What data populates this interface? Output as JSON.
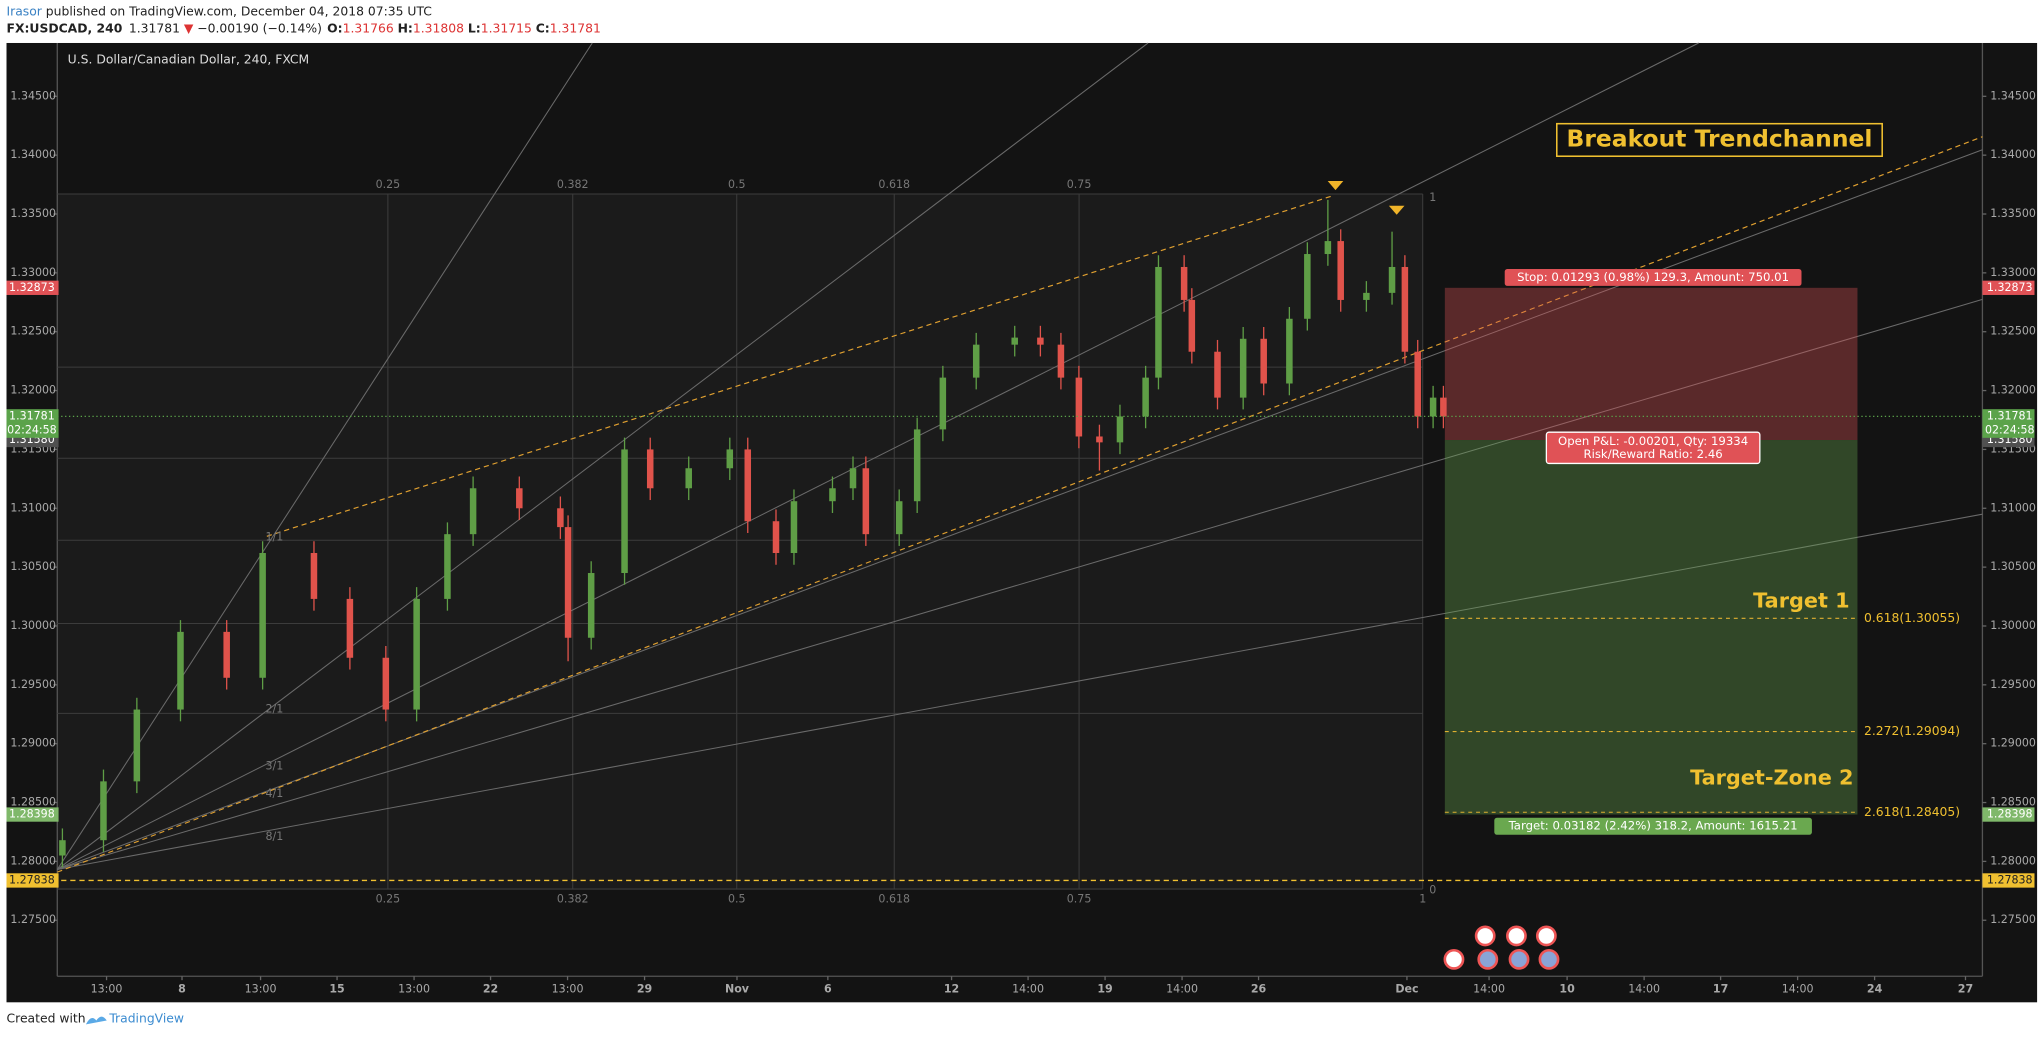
{
  "header": {
    "author": "Irasor",
    "published": "published on TradingView.com, December 04, 2018 07:35 UTC",
    "symbol": "FX:USDCAD, 240",
    "last": "1.31781",
    "arrow": "▼",
    "change": "−0.00190 (−0.14%)",
    "o_label": "O:",
    "o": "1.31766",
    "h_label": "H:",
    "h": "1.31808",
    "l_label": "L:",
    "l": "1.31715",
    "c_label": "C:",
    "c": "1.31781"
  },
  "footer": {
    "created": "Created with",
    "brand": "TradingView"
  },
  "chart_data": {
    "type": "candlestick",
    "title": "U.S. Dollar/Canadian Dollar, 240, FXCM",
    "up_color": "#5f9e46",
    "down_color": "#e0534b",
    "xlim": [
      0,
      375
    ],
    "ylim": [
      1.27024,
      1.34953
    ],
    "xticks": [
      {
        "value": 9.6,
        "label": "13:00"
      },
      {
        "value": 24.3,
        "label": "8"
      },
      {
        "value": 39.6,
        "label": "13:00"
      },
      {
        "value": 54.5,
        "label": "15"
      },
      {
        "value": 69.5,
        "label": "13:00"
      },
      {
        "value": 84.4,
        "label": "22"
      },
      {
        "value": 99.4,
        "label": "13:00"
      },
      {
        "value": 114.4,
        "label": "29"
      },
      {
        "value": 132.4,
        "label": "Nov"
      },
      {
        "value": 150.1,
        "label": "6"
      },
      {
        "value": 174.2,
        "label": "12"
      },
      {
        "value": 189.1,
        "label": "14:00"
      },
      {
        "value": 204.1,
        "label": "19"
      },
      {
        "value": 219.1,
        "label": "14:00"
      },
      {
        "value": 234.0,
        "label": "26"
      },
      {
        "value": 262.9,
        "label": "Dec"
      },
      {
        "value": 278.9,
        "label": "14:00"
      },
      {
        "value": 294.1,
        "label": "10"
      },
      {
        "value": 309.1,
        "label": "14:00"
      },
      {
        "value": 324.0,
        "label": "17"
      },
      {
        "value": 339.0,
        "label": "14:00"
      },
      {
        "value": 354.0,
        "label": "24"
      },
      {
        "value": 371.7,
        "label": "27"
      }
    ],
    "yticks": [
      {
        "value": 1.345,
        "label": "1.34500"
      },
      {
        "value": 1.34,
        "label": "1.34000"
      },
      {
        "value": 1.335,
        "label": "1.33500"
      },
      {
        "value": 1.33,
        "label": "1.33000"
      },
      {
        "value": 1.325,
        "label": "1.32500"
      },
      {
        "value": 1.32,
        "label": "1.32000"
      },
      {
        "value": 1.315,
        "label": "1.31500"
      },
      {
        "value": 1.31,
        "label": "1.31000"
      },
      {
        "value": 1.305,
        "label": "1.30500"
      },
      {
        "value": 1.3,
        "label": "1.30000"
      },
      {
        "value": 1.295,
        "label": "1.29500"
      },
      {
        "value": 1.29,
        "label": "1.29000"
      },
      {
        "value": 1.285,
        "label": "1.28500"
      },
      {
        "value": 1.28,
        "label": "1.28000"
      },
      {
        "value": 1.275,
        "label": "1.27500"
      }
    ],
    "price_labels": [
      {
        "value": 1.32873,
        "label": "1.32873",
        "color": "#e05256"
      },
      {
        "value": 1.31781,
        "label": "1.31781",
        "color": "#5ba34a"
      },
      {
        "value": 1.3158,
        "label": "1.31580",
        "color": "#505050"
      },
      {
        "value": 1.28398,
        "label": "1.28398",
        "color": "#7fb86a"
      },
      {
        "value": 1.27838,
        "label": "1.27838",
        "color": "#f0c030"
      }
    ],
    "countdown": "02:24:58",
    "x": [
      1,
      9,
      15.5,
      24,
      33,
      40,
      50,
      57,
      64,
      70,
      76,
      81,
      90,
      98,
      99.5,
      104,
      110.5,
      115.5,
      123,
      131,
      134.5,
      140,
      143.5,
      151,
      155,
      157.5,
      164,
      167.5,
      172.5,
      179,
      186.5,
      191.5,
      195.5,
      199,
      203,
      207,
      212,
      214.5,
      219.5,
      221,
      226,
      231,
      235,
      240,
      243.5,
      247.5,
      250,
      255,
      260,
      262.5,
      265,
      268,
      270
    ],
    "open": [
      1.2805,
      1.2818,
      1.2868,
      1.2929,
      1.2995,
      1.2956,
      1.3062,
      1.3023,
      1.2973,
      1.2929,
      1.3023,
      1.3078,
      1.3117,
      1.31,
      1.3084,
      1.299,
      1.3045,
      1.315,
      1.3117,
      1.3134,
      1.315,
      1.3089,
      1.3062,
      1.3106,
      1.3117,
      1.3134,
      1.3078,
      1.3106,
      1.3167,
      1.3211,
      1.3239,
      1.3245,
      1.3239,
      1.3211,
      1.3161,
      1.3156,
      1.3178,
      1.3211,
      1.3305,
      1.3277,
      1.3233,
      1.3194,
      1.3244,
      1.3206,
      1.3261,
      1.3316,
      1.3327,
      1.3277,
      1.3283,
      1.3305,
      1.3233,
      1.3178,
      1.3194
    ],
    "high": [
      1.2828,
      1.2878,
      1.2939,
      1.3005,
      1.3005,
      1.3072,
      1.3072,
      1.3033,
      1.2983,
      1.3033,
      1.3088,
      1.3127,
      1.3127,
      1.311,
      1.3094,
      1.3055,
      1.316,
      1.316,
      1.3144,
      1.316,
      1.316,
      1.3099,
      1.3116,
      1.3127,
      1.3144,
      1.3144,
      1.3116,
      1.3177,
      1.3221,
      1.3249,
      1.3255,
      1.3255,
      1.3249,
      1.3221,
      1.3171,
      1.3188,
      1.3221,
      1.3315,
      1.3315,
      1.3287,
      1.3243,
      1.3254,
      1.3254,
      1.3271,
      1.3326,
      1.3362,
      1.3337,
      1.3293,
      1.3335,
      1.3315,
      1.3243,
      1.3204,
      1.3204
    ],
    "low": [
      1.2795,
      1.2808,
      1.2858,
      1.2919,
      1.2946,
      1.2946,
      1.3013,
      1.2963,
      1.2919,
      1.2919,
      1.3013,
      1.3068,
      1.309,
      1.3074,
      1.297,
      1.298,
      1.3035,
      1.3107,
      1.3107,
      1.3124,
      1.3079,
      1.3052,
      1.3052,
      1.3096,
      1.3107,
      1.3068,
      1.3068,
      1.3096,
      1.3157,
      1.3201,
      1.3229,
      1.3229,
      1.3201,
      1.3151,
      1.3132,
      1.3146,
      1.3168,
      1.3201,
      1.3267,
      1.3223,
      1.3184,
      1.3184,
      1.3196,
      1.3196,
      1.3251,
      1.3306,
      1.3267,
      1.3267,
      1.3273,
      1.3223,
      1.3168,
      1.3168,
      1.3168
    ],
    "close": [
      1.2818,
      1.2868,
      1.2929,
      1.2995,
      1.2956,
      1.3062,
      1.3023,
      1.2973,
      1.2929,
      1.3023,
      1.3078,
      1.3117,
      1.31,
      1.3084,
      1.299,
      1.3045,
      1.315,
      1.3117,
      1.3134,
      1.315,
      1.3089,
      1.3062,
      1.3106,
      1.3117,
      1.3134,
      1.3078,
      1.3106,
      1.3167,
      1.3211,
      1.3239,
      1.3245,
      1.3239,
      1.3211,
      1.3161,
      1.3156,
      1.3178,
      1.3211,
      1.3305,
      1.3277,
      1.3233,
      1.3194,
      1.3244,
      1.3206,
      1.3261,
      1.3316,
      1.3327,
      1.3277,
      1.3283,
      1.3305,
      1.3233,
      1.3178,
      1.3194,
      1.3178
    ],
    "annotations": {
      "headline": "Breakout Trendchannel",
      "target1": "Target 1",
      "target2": "Target-Zone 2",
      "stop": "Stop: 0.01293 (0.98%) 129.3, Amount: 750.01",
      "pnl": "Open P&L: -0.00201, Qty: 19334",
      "rr": "Risk/Reward Ratio: 2.46",
      "target": "Target: 0.03182 (2.42%) 318.2, Amount: 1615.21",
      "fib_levels": [
        "0.618(1.30055)",
        "2.272(1.29094)",
        "2.618(1.28405)"
      ],
      "fib_time": [
        "0.25",
        "0.382",
        "0.5",
        "0.618",
        "0.75",
        "1"
      ],
      "fib_edge": [
        "1",
        "0"
      ],
      "gann": [
        "1/1",
        "2/1",
        "3/1",
        "4/1",
        "8/1"
      ]
    }
  }
}
